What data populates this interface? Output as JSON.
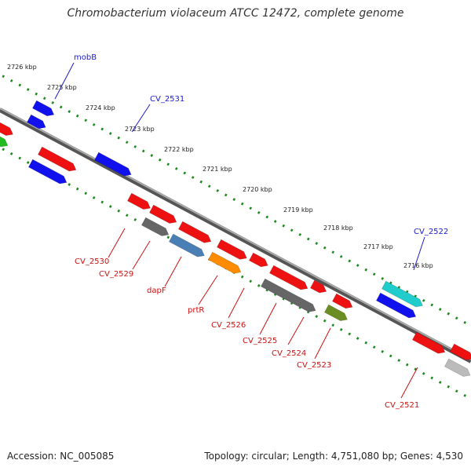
{
  "title": "Chromobacterium violaceum ATCC 12472, complete genome",
  "footer": {
    "accession": "Accession: NC_005085",
    "stats": "Topology: circular; Length: 4,751,080 bp; Genes: 4,530"
  },
  "ticks": [
    "2726 kbp",
    "2725 kbp",
    "2724 kbp",
    "2723 kbp",
    "2722 kbp",
    "2721 kbp",
    "2720 kbp",
    "2719 kbp",
    "2718 kbp",
    "2717 kbp",
    "2716 kbp"
  ],
  "labels_top": [
    "mobB",
    "CV_2531",
    "CV_2522"
  ],
  "labels_bottom": [
    "CV_2530",
    "CV_2529",
    "dapF",
    "prtR",
    "CV_2526",
    "CV_2525",
    "CV_2524",
    "CV_2523",
    "CV_2521"
  ],
  "colors": {
    "backbone": "#777777",
    "tick_dots": "#1a8a1a",
    "gene_red": "#ee1111",
    "gene_blue": "#1111ee",
    "gene_gray": "#666666",
    "gene_steelblue": "#4a7fb5",
    "gene_orange": "#ff8c00",
    "gene_olive": "#6b8e23",
    "gene_cyan": "#20cccc",
    "gene_green": "#22bb22",
    "gene_lightgray": "#bbbbbb",
    "label_top": "#1a1acc",
    "label_bottom": "#cc1111"
  }
}
